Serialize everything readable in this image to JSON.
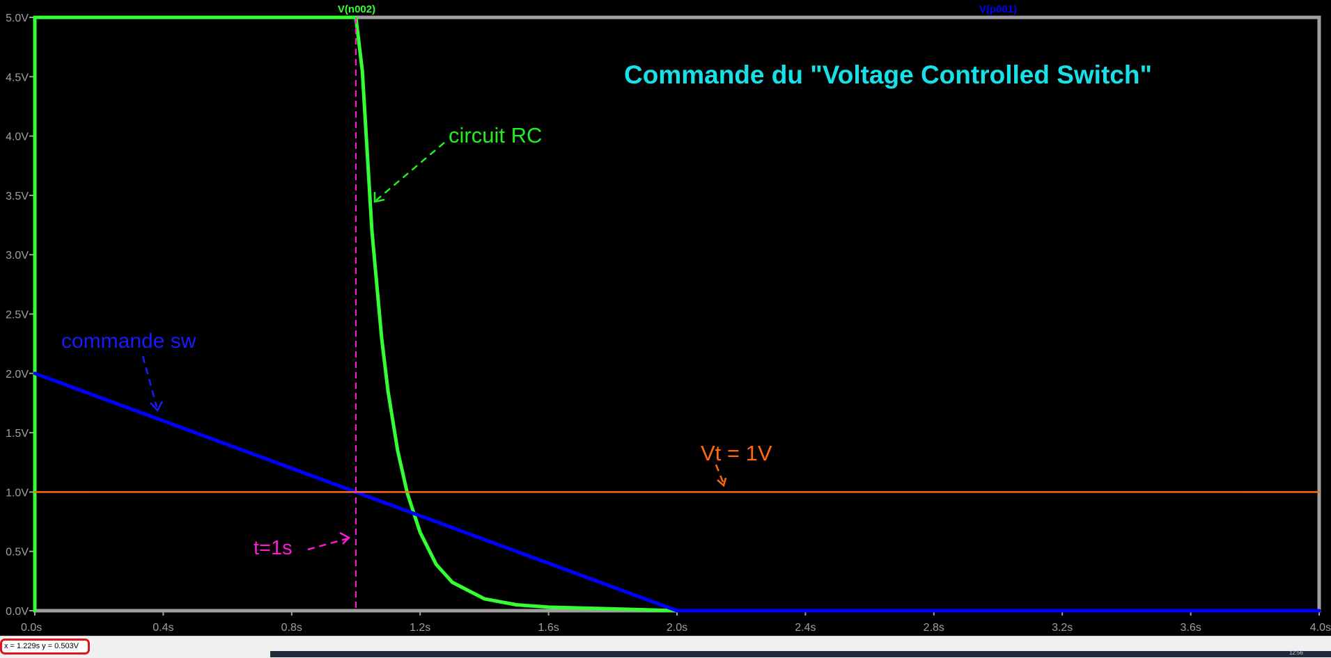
{
  "window": {
    "background": "#000000",
    "frame_color": "#a0a0a0"
  },
  "trace_labels": [
    {
      "text": "V(n002)",
      "color": "#33ff33"
    },
    {
      "text": "V(p001)",
      "color": "#0000ff"
    }
  ],
  "annotations": [
    {
      "id": "title",
      "text": "Commande du \"Voltage Controlled Switch\"",
      "color": "#16e0e8"
    },
    {
      "id": "rc",
      "text": "circuit RC",
      "color": "#22ee22"
    },
    {
      "id": "sw",
      "text": "commande sw",
      "color": "#1a1aff"
    },
    {
      "id": "vt",
      "text": "Vt = 1V",
      "color": "#ff6a10"
    },
    {
      "id": "t1",
      "text": "t=1s",
      "color": "#ff1ad6"
    }
  ],
  "cursor_readout": {
    "text": "x = 1.229s   y = 0.503V"
  },
  "taskbar": {
    "clock": "12:56"
  },
  "chart_data": {
    "type": "line",
    "title": "",
    "xlabel": "",
    "ylabel": "",
    "xlim": [
      0,
      4
    ],
    "ylim": [
      0,
      5
    ],
    "x_ticks": [
      "0.0s",
      "0.4s",
      "0.8s",
      "1.2s",
      "1.6s",
      "2.0s",
      "2.4s",
      "2.8s",
      "3.2s",
      "3.6s",
      "4.0s"
    ],
    "y_ticks": [
      "0.0V",
      "0.5V",
      "1.0V",
      "1.5V",
      "2.0V",
      "2.5V",
      "3.0V",
      "3.5V",
      "4.0V",
      "4.5V",
      "5.0V"
    ],
    "grid": false,
    "series": [
      {
        "name": "V(n002)",
        "color": "#33ff33",
        "x": [
          0,
          0,
          0.4,
          0.8,
          1.0,
          1.02,
          1.05,
          1.08,
          1.1,
          1.13,
          1.16,
          1.2,
          1.25,
          1.3,
          1.4,
          1.5,
          1.6,
          1.8,
          2.0
        ],
        "y": [
          0,
          5,
          5,
          5,
          5,
          4.55,
          3.2,
          2.3,
          1.85,
          1.35,
          0.99,
          0.66,
          0.39,
          0.24,
          0.1,
          0.05,
          0.03,
          0.015,
          0.0
        ]
      },
      {
        "name": "V(p001)",
        "color": "#0000ff",
        "x": [
          0,
          2.0,
          4.0
        ],
        "y": [
          2.0,
          0.0,
          0.0
        ]
      },
      {
        "name": "Vt = 1V",
        "color": "#ff6a10",
        "x": [
          0,
          4.0
        ],
        "y": [
          1.0,
          1.0
        ]
      }
    ],
    "markers": [
      {
        "type": "vline",
        "x": 1.0,
        "color": "#ff1ad6",
        "style": "dashed"
      }
    ]
  }
}
